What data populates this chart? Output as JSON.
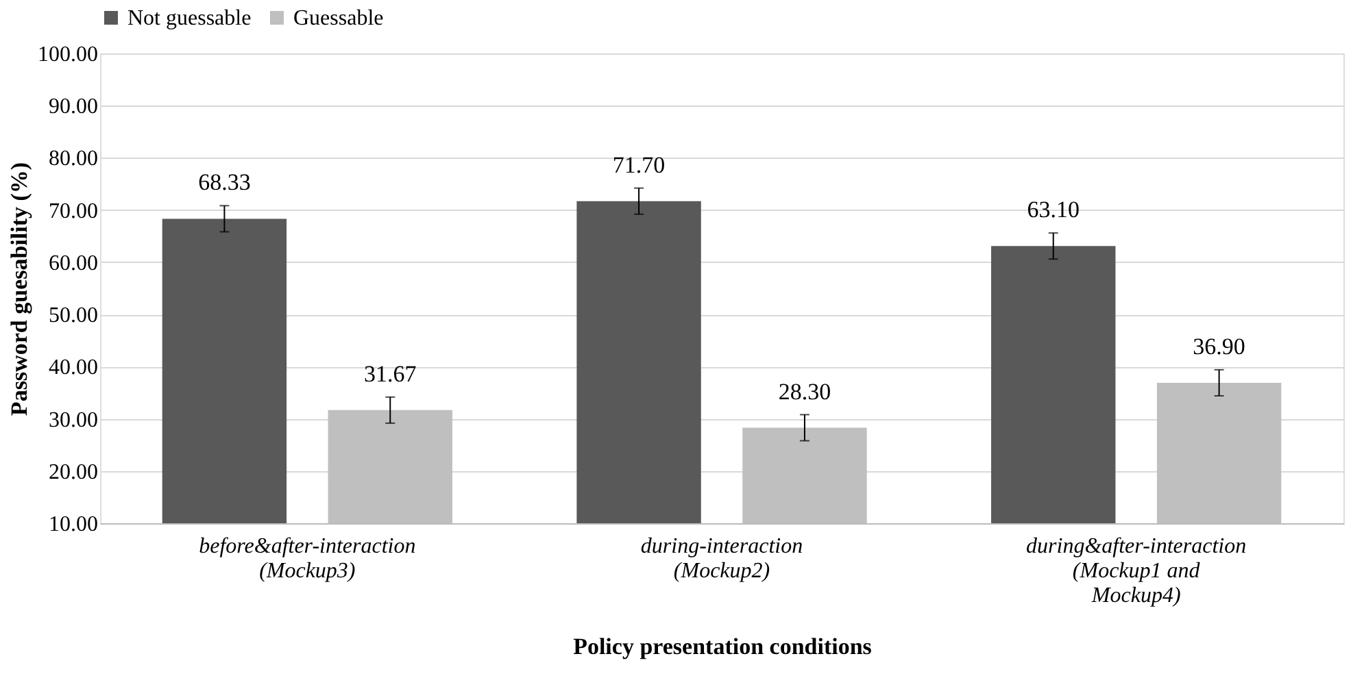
{
  "chart_data": {
    "type": "bar",
    "xlabel": "Policy presentation conditions",
    "ylabel": "Password guesability (%)",
    "categories": [
      "before&after-interaction\n(Mockup3)",
      "during-interaction\n(Mockup2)",
      "during&after-interaction\n(Mockup1 and\nMockup4)"
    ],
    "series": [
      {
        "name": "Not guessable",
        "color": "#595959",
        "values": [
          68.33,
          71.7,
          63.1
        ],
        "value_labels": [
          "68.33",
          "71.70",
          "63.10"
        ],
        "errors": [
          2.5,
          2.5,
          2.5
        ]
      },
      {
        "name": "Guessable",
        "color": "#bfbfbf",
        "values": [
          31.67,
          28.3,
          36.9
        ],
        "value_labels": [
          "31.67",
          "28.30",
          "36.90"
        ],
        "errors": [
          2.5,
          2.5,
          2.5
        ]
      }
    ],
    "ylim": [
      10,
      100
    ],
    "yticks": [
      {
        "value": 10,
        "label": "10.00"
      },
      {
        "value": 20,
        "label": "20.00"
      },
      {
        "value": 30,
        "label": "30.00"
      },
      {
        "value": 40,
        "label": "40.00"
      },
      {
        "value": 50,
        "label": "50.00"
      },
      {
        "value": 60,
        "label": "60.00"
      },
      {
        "value": 70,
        "label": "70.00"
      },
      {
        "value": 80,
        "label": "80.00"
      },
      {
        "value": 90,
        "label": "90.00"
      },
      {
        "value": 100,
        "label": "100.00"
      }
    ],
    "grid": "y",
    "legend": "top"
  }
}
